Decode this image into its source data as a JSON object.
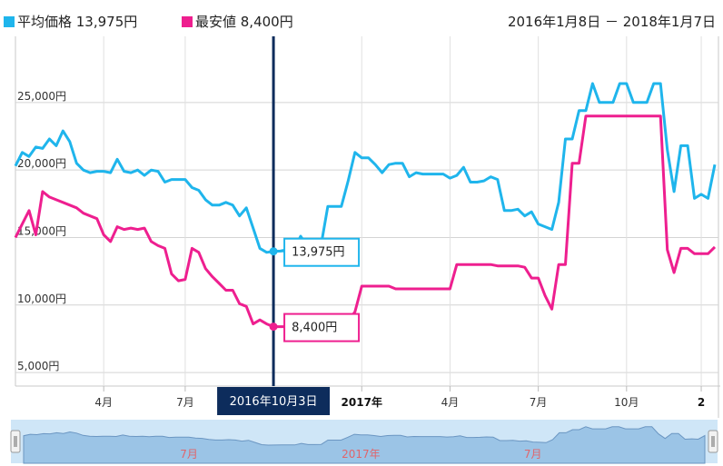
{
  "legend": {
    "avg": {
      "label": "平均価格 13,975円",
      "color": "#1fb5ec"
    },
    "min": {
      "label": "最安値 8,400円",
      "color": "#ee1f8f"
    }
  },
  "date_range": "2016年1月8日 － 2018年1月7日",
  "crosshair": {
    "label": "2016年10月3日",
    "x_index": 38
  },
  "tooltips": {
    "avg": "13,975円",
    "min": "8,400円"
  },
  "chart_data": {
    "type": "line",
    "x_unit": "week",
    "x_start": "2016-01-08",
    "y_ticks": [
      {
        "value": 5000,
        "label": "5,000円"
      },
      {
        "value": 10000,
        "label": "10,000円"
      },
      {
        "value": 15000,
        "label": "15,000円"
      },
      {
        "value": 20000,
        "label": "20,000円"
      },
      {
        "value": 25000,
        "label": "25,000円"
      }
    ],
    "ylim": [
      4000,
      29900
    ],
    "x_ticks": [
      {
        "x_index": 13,
        "label": "4月",
        "bold": false
      },
      {
        "x_index": 25,
        "label": "7月",
        "bold": false
      },
      {
        "x_index": 51,
        "label": "2017年",
        "bold": true
      },
      {
        "x_index": 64,
        "label": "4月",
        "bold": false
      },
      {
        "x_index": 77,
        "label": "7月",
        "bold": false
      },
      {
        "x_index": 90,
        "label": "10月",
        "bold": false
      },
      {
        "x_index": 101,
        "label": "2",
        "bold": true
      }
    ],
    "series": [
      {
        "name": "平均価格",
        "color": "#1fb5ec",
        "values": [
          20300,
          21300,
          21000,
          21700,
          21600,
          22300,
          21800,
          22900,
          22100,
          20500,
          20000,
          19800,
          19900,
          19900,
          19800,
          20800,
          19900,
          19800,
          20000,
          19600,
          20000,
          19900,
          19100,
          19300,
          19300,
          19300,
          18700,
          18500,
          17800,
          17400,
          17400,
          17600,
          17400,
          16600,
          17200,
          15700,
          14200,
          13900,
          13975,
          14000,
          14100,
          14000,
          15100,
          14300,
          14300,
          14400,
          17300,
          17300,
          17300,
          19200,
          21300,
          20900,
          20900,
          20400,
          19800,
          20400,
          20500,
          20500,
          19500,
          19800,
          19700,
          19700,
          19700,
          19700,
          19400,
          19600,
          20200,
          19100,
          19100,
          19200,
          19500,
          19300,
          17000,
          17000,
          17100,
          16600,
          16900,
          16000,
          15800,
          15600,
          17600,
          22300,
          22300,
          24400,
          24400,
          26400,
          25000,
          25000,
          25000,
          26400,
          26400,
          25000,
          25000,
          25000,
          26400,
          26400,
          21500,
          18400,
          21800,
          21800,
          17900,
          18200,
          17900,
          20400
        ]
      },
      {
        "name": "最安値",
        "color": "#ee1f8f",
        "values": [
          15000,
          16000,
          17000,
          15200,
          18400,
          18000,
          17800,
          17600,
          17400,
          17200,
          16800,
          16600,
          16400,
          15200,
          14700,
          15800,
          15600,
          15700,
          15600,
          15700,
          14700,
          14400,
          14200,
          12300,
          11800,
          11900,
          14200,
          13900,
          12700,
          12100,
          11600,
          11100,
          11100,
          10100,
          9900,
          8600,
          8900,
          8600,
          8400,
          8400,
          8400,
          8400,
          8400,
          8400,
          8400,
          8400,
          8600,
          8800,
          8800,
          8800,
          9500,
          11400,
          11400,
          11400,
          11400,
          11400,
          11200,
          11200,
          11200,
          11200,
          11200,
          11200,
          11200,
          11200,
          11200,
          13000,
          13000,
          13000,
          13000,
          13000,
          13000,
          12900,
          12900,
          12900,
          12900,
          12800,
          12000,
          12000,
          10700,
          9700,
          13000,
          13000,
          20500,
          20500,
          24000,
          24000,
          24000,
          24000,
          24000,
          24000,
          24000,
          24000,
          24000,
          24000,
          24000,
          24000,
          14100,
          12400,
          14200,
          14200,
          13800,
          13800,
          13800,
          14300
        ]
      }
    ]
  },
  "navigator": {
    "labels": [
      {
        "x_index": 25,
        "label": "7月"
      },
      {
        "x_index": 51,
        "label": "2017年"
      },
      {
        "x_index": 77,
        "label": "7月"
      }
    ]
  }
}
